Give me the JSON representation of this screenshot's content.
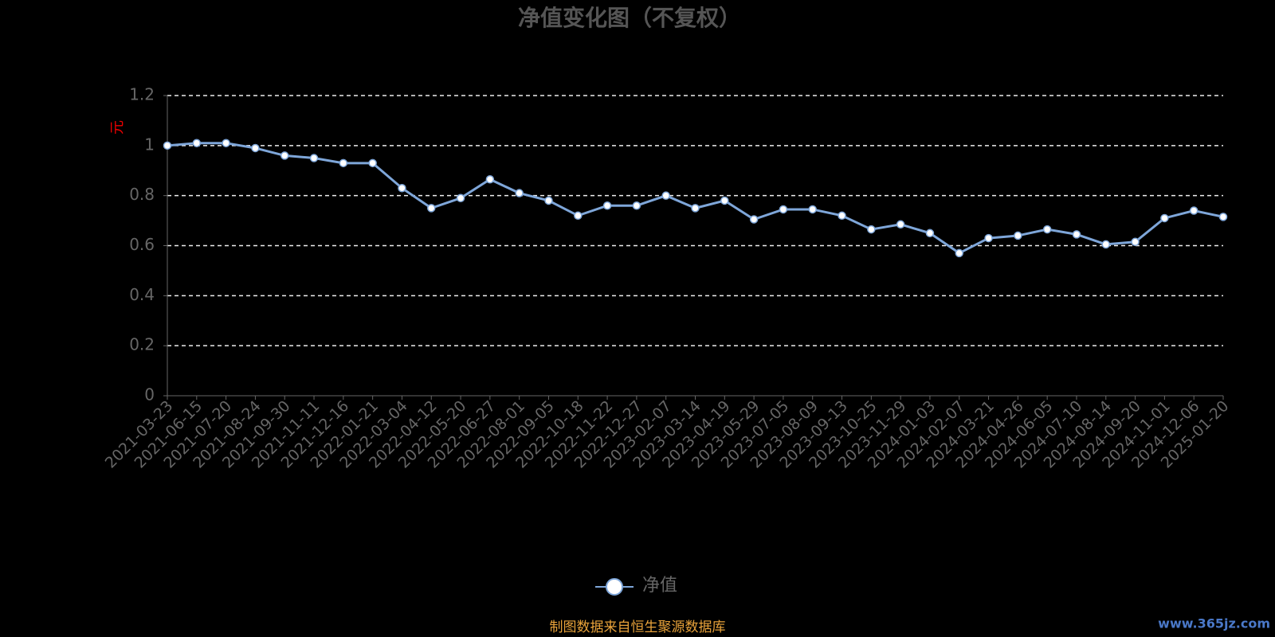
{
  "chart_data": {
    "type": "line",
    "title": "净值变化图（不复权）",
    "y_label": "元",
    "categories": [
      "2021-03-23",
      "2021-06-15",
      "2021-07-20",
      "2021-08-24",
      "2021-09-30",
      "2021-11-11",
      "2021-12-16",
      "2022-01-21",
      "2022-03-04",
      "2022-04-12",
      "2022-05-20",
      "2022-06-27",
      "2022-08-01",
      "2022-09-05",
      "2022-10-18",
      "2022-11-22",
      "2022-12-27",
      "2023-02-07",
      "2023-03-14",
      "2023-04-19",
      "2023-05-29",
      "2023-07-05",
      "2023-08-09",
      "2023-09-13",
      "2023-10-25",
      "2023-11-29",
      "2024-01-03",
      "2024-02-07",
      "2024-03-21",
      "2024-04-26",
      "2024-06-05",
      "2024-07-10",
      "2024-08-14",
      "2024-09-20",
      "2024-11-01",
      "2024-12-06",
      "2025-01-20"
    ],
    "series": [
      {
        "name": "净值",
        "color": "#7ea6d9",
        "values": [
          1.0,
          1.01,
          1.01,
          0.99,
          0.96,
          0.95,
          0.93,
          0.93,
          0.83,
          0.75,
          0.79,
          0.865,
          0.81,
          0.78,
          0.72,
          0.76,
          0.76,
          0.8,
          0.75,
          0.78,
          0.705,
          0.745,
          0.745,
          0.72,
          0.665,
          0.685,
          0.65,
          0.57,
          0.63,
          0.64,
          0.665,
          0.645,
          0.605,
          0.615,
          0.71,
          0.74,
          0.715
        ]
      }
    ],
    "ylim": [
      0,
      1.2
    ],
    "yticks": [
      0,
      0.2,
      0.4,
      0.6,
      0.8,
      1,
      1.2
    ],
    "grid": true,
    "footer": "制图数据来自恒生聚源数据库",
    "watermark": "www.365jz.com"
  }
}
